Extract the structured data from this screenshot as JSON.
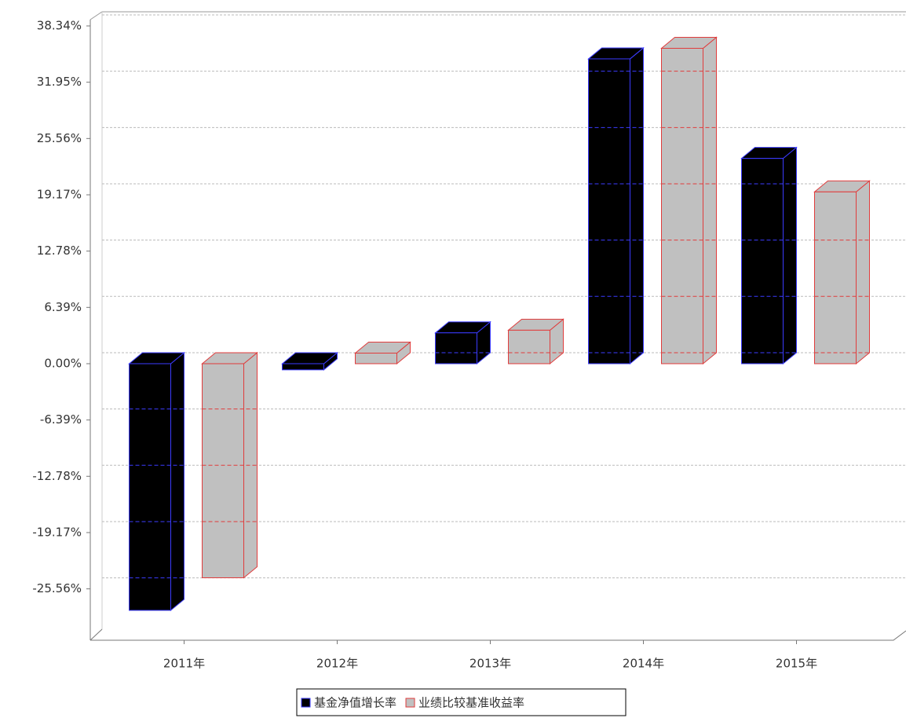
{
  "chart_data": {
    "type": "bar3d",
    "categories": [
      "2011年",
      "2012年",
      "2013年",
      "2014年",
      "2015年"
    ],
    "series": [
      {
        "name": "基金净值增长率",
        "color": "#000000",
        "edge_color": "#3b3bff",
        "values": [
          -28.0,
          -0.7,
          3.5,
          34.6,
          23.3
        ]
      },
      {
        "name": "业绩比较基准收益率",
        "color": "#c0c0c0",
        "edge_color": "#e03c3c",
        "values": [
          -24.3,
          1.2,
          3.8,
          35.8,
          19.5
        ]
      }
    ],
    "ylim": [
      -31.39,
      38.34
    ],
    "yticks": [
      {
        "value": -25.56,
        "label": "-25.56%"
      },
      {
        "value": -19.17,
        "label": "-19.17%"
      },
      {
        "value": -12.78,
        "label": "-12.78%"
      },
      {
        "value": -6.39,
        "label": "-6.39%"
      },
      {
        "value": 0,
        "label": "0.00%"
      },
      {
        "value": 6.39,
        "label": "6.39%"
      },
      {
        "value": 12.78,
        "label": "12.78%"
      },
      {
        "value": 19.17,
        "label": "19.17%"
      },
      {
        "value": 25.56,
        "label": "25.56%"
      },
      {
        "value": 31.95,
        "label": "31.95%"
      },
      {
        "value": 38.34,
        "label": "38.34%"
      }
    ],
    "grid": true
  }
}
